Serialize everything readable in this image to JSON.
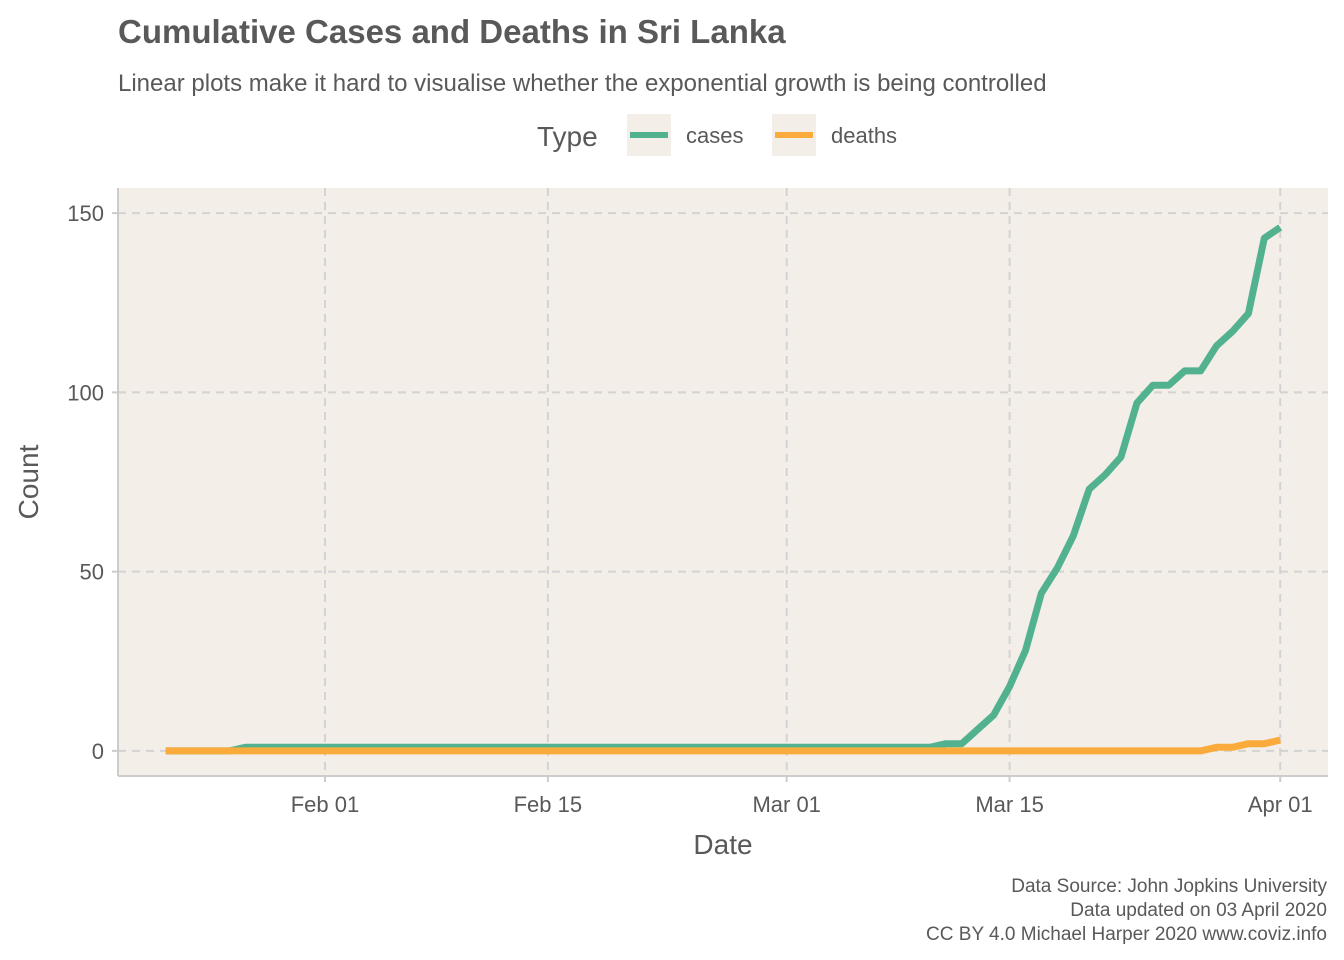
{
  "chart_data": {
    "type": "line",
    "title": "Cumulative Cases and Deaths in Sri Lanka",
    "subtitle": "Linear plots make it hard to visualise whether the exponential growth is being controlled",
    "xlabel": "Date",
    "ylabel": "Count",
    "legend": {
      "title": "Type",
      "placement": "top"
    },
    "x_ticks": [
      {
        "label": "Feb 01",
        "date": "2020-02-01"
      },
      {
        "label": "Feb 15",
        "date": "2020-02-15"
      },
      {
        "label": "Mar 01",
        "date": "2020-03-01"
      },
      {
        "label": "Mar 15",
        "date": "2020-03-15"
      },
      {
        "label": "Apr 01",
        "date": "2020-04-01"
      }
    ],
    "y_ticks": [
      0,
      50,
      100,
      150
    ],
    "xlim": [
      "2020-01-19",
      "2020-04-04"
    ],
    "ylim": [
      -7,
      157
    ],
    "grid": true,
    "panel_color": "#f3eee7",
    "x": [
      "2020-01-22",
      "2020-01-23",
      "2020-01-24",
      "2020-01-25",
      "2020-01-26",
      "2020-01-27",
      "2020-01-28",
      "2020-01-29",
      "2020-01-30",
      "2020-01-31",
      "2020-02-01",
      "2020-02-02",
      "2020-02-03",
      "2020-02-04",
      "2020-02-05",
      "2020-02-06",
      "2020-02-07",
      "2020-02-08",
      "2020-02-09",
      "2020-02-10",
      "2020-02-11",
      "2020-02-12",
      "2020-02-13",
      "2020-02-14",
      "2020-02-15",
      "2020-02-16",
      "2020-02-17",
      "2020-02-18",
      "2020-02-19",
      "2020-02-20",
      "2020-02-21",
      "2020-02-22",
      "2020-02-23",
      "2020-02-24",
      "2020-02-25",
      "2020-02-26",
      "2020-02-27",
      "2020-02-28",
      "2020-02-29",
      "2020-03-01",
      "2020-03-02",
      "2020-03-03",
      "2020-03-04",
      "2020-03-05",
      "2020-03-06",
      "2020-03-07",
      "2020-03-08",
      "2020-03-09",
      "2020-03-10",
      "2020-03-11",
      "2020-03-12",
      "2020-03-13",
      "2020-03-14",
      "2020-03-15",
      "2020-03-16",
      "2020-03-17",
      "2020-03-18",
      "2020-03-19",
      "2020-03-20",
      "2020-03-21",
      "2020-03-22",
      "2020-03-23",
      "2020-03-24",
      "2020-03-25",
      "2020-03-26",
      "2020-03-27",
      "2020-03-28",
      "2020-03-29",
      "2020-03-30",
      "2020-03-31",
      "2020-04-01"
    ],
    "series": [
      {
        "name": "cases",
        "color": "#52b290",
        "values": [
          0,
          0,
          0,
          0,
          0,
          1,
          1,
          1,
          1,
          1,
          1,
          1,
          1,
          1,
          1,
          1,
          1,
          1,
          1,
          1,
          1,
          1,
          1,
          1,
          1,
          1,
          1,
          1,
          1,
          1,
          1,
          1,
          1,
          1,
          1,
          1,
          1,
          1,
          1,
          1,
          1,
          1,
          1,
          1,
          1,
          1,
          1,
          1,
          1,
          2,
          2,
          6,
          10,
          18,
          28,
          44,
          51,
          60,
          73,
          77,
          82,
          97,
          102,
          102,
          106,
          106,
          113,
          117,
          122,
          143,
          146
        ]
      },
      {
        "name": "deaths",
        "color": "#fbab3b",
        "values": [
          0,
          0,
          0,
          0,
          0,
          0,
          0,
          0,
          0,
          0,
          0,
          0,
          0,
          0,
          0,
          0,
          0,
          0,
          0,
          0,
          0,
          0,
          0,
          0,
          0,
          0,
          0,
          0,
          0,
          0,
          0,
          0,
          0,
          0,
          0,
          0,
          0,
          0,
          0,
          0,
          0,
          0,
          0,
          0,
          0,
          0,
          0,
          0,
          0,
          0,
          0,
          0,
          0,
          0,
          0,
          0,
          0,
          0,
          0,
          0,
          0,
          0,
          0,
          0,
          0,
          0,
          1,
          1,
          2,
          2,
          3
        ]
      }
    ]
  },
  "caption": {
    "line1": "Data Source: John Jopkins University",
    "line2": "Data updated on 03 April 2020",
    "line3": "CC BY 4.0 Michael Harper 2020 www.coviz.info"
  }
}
